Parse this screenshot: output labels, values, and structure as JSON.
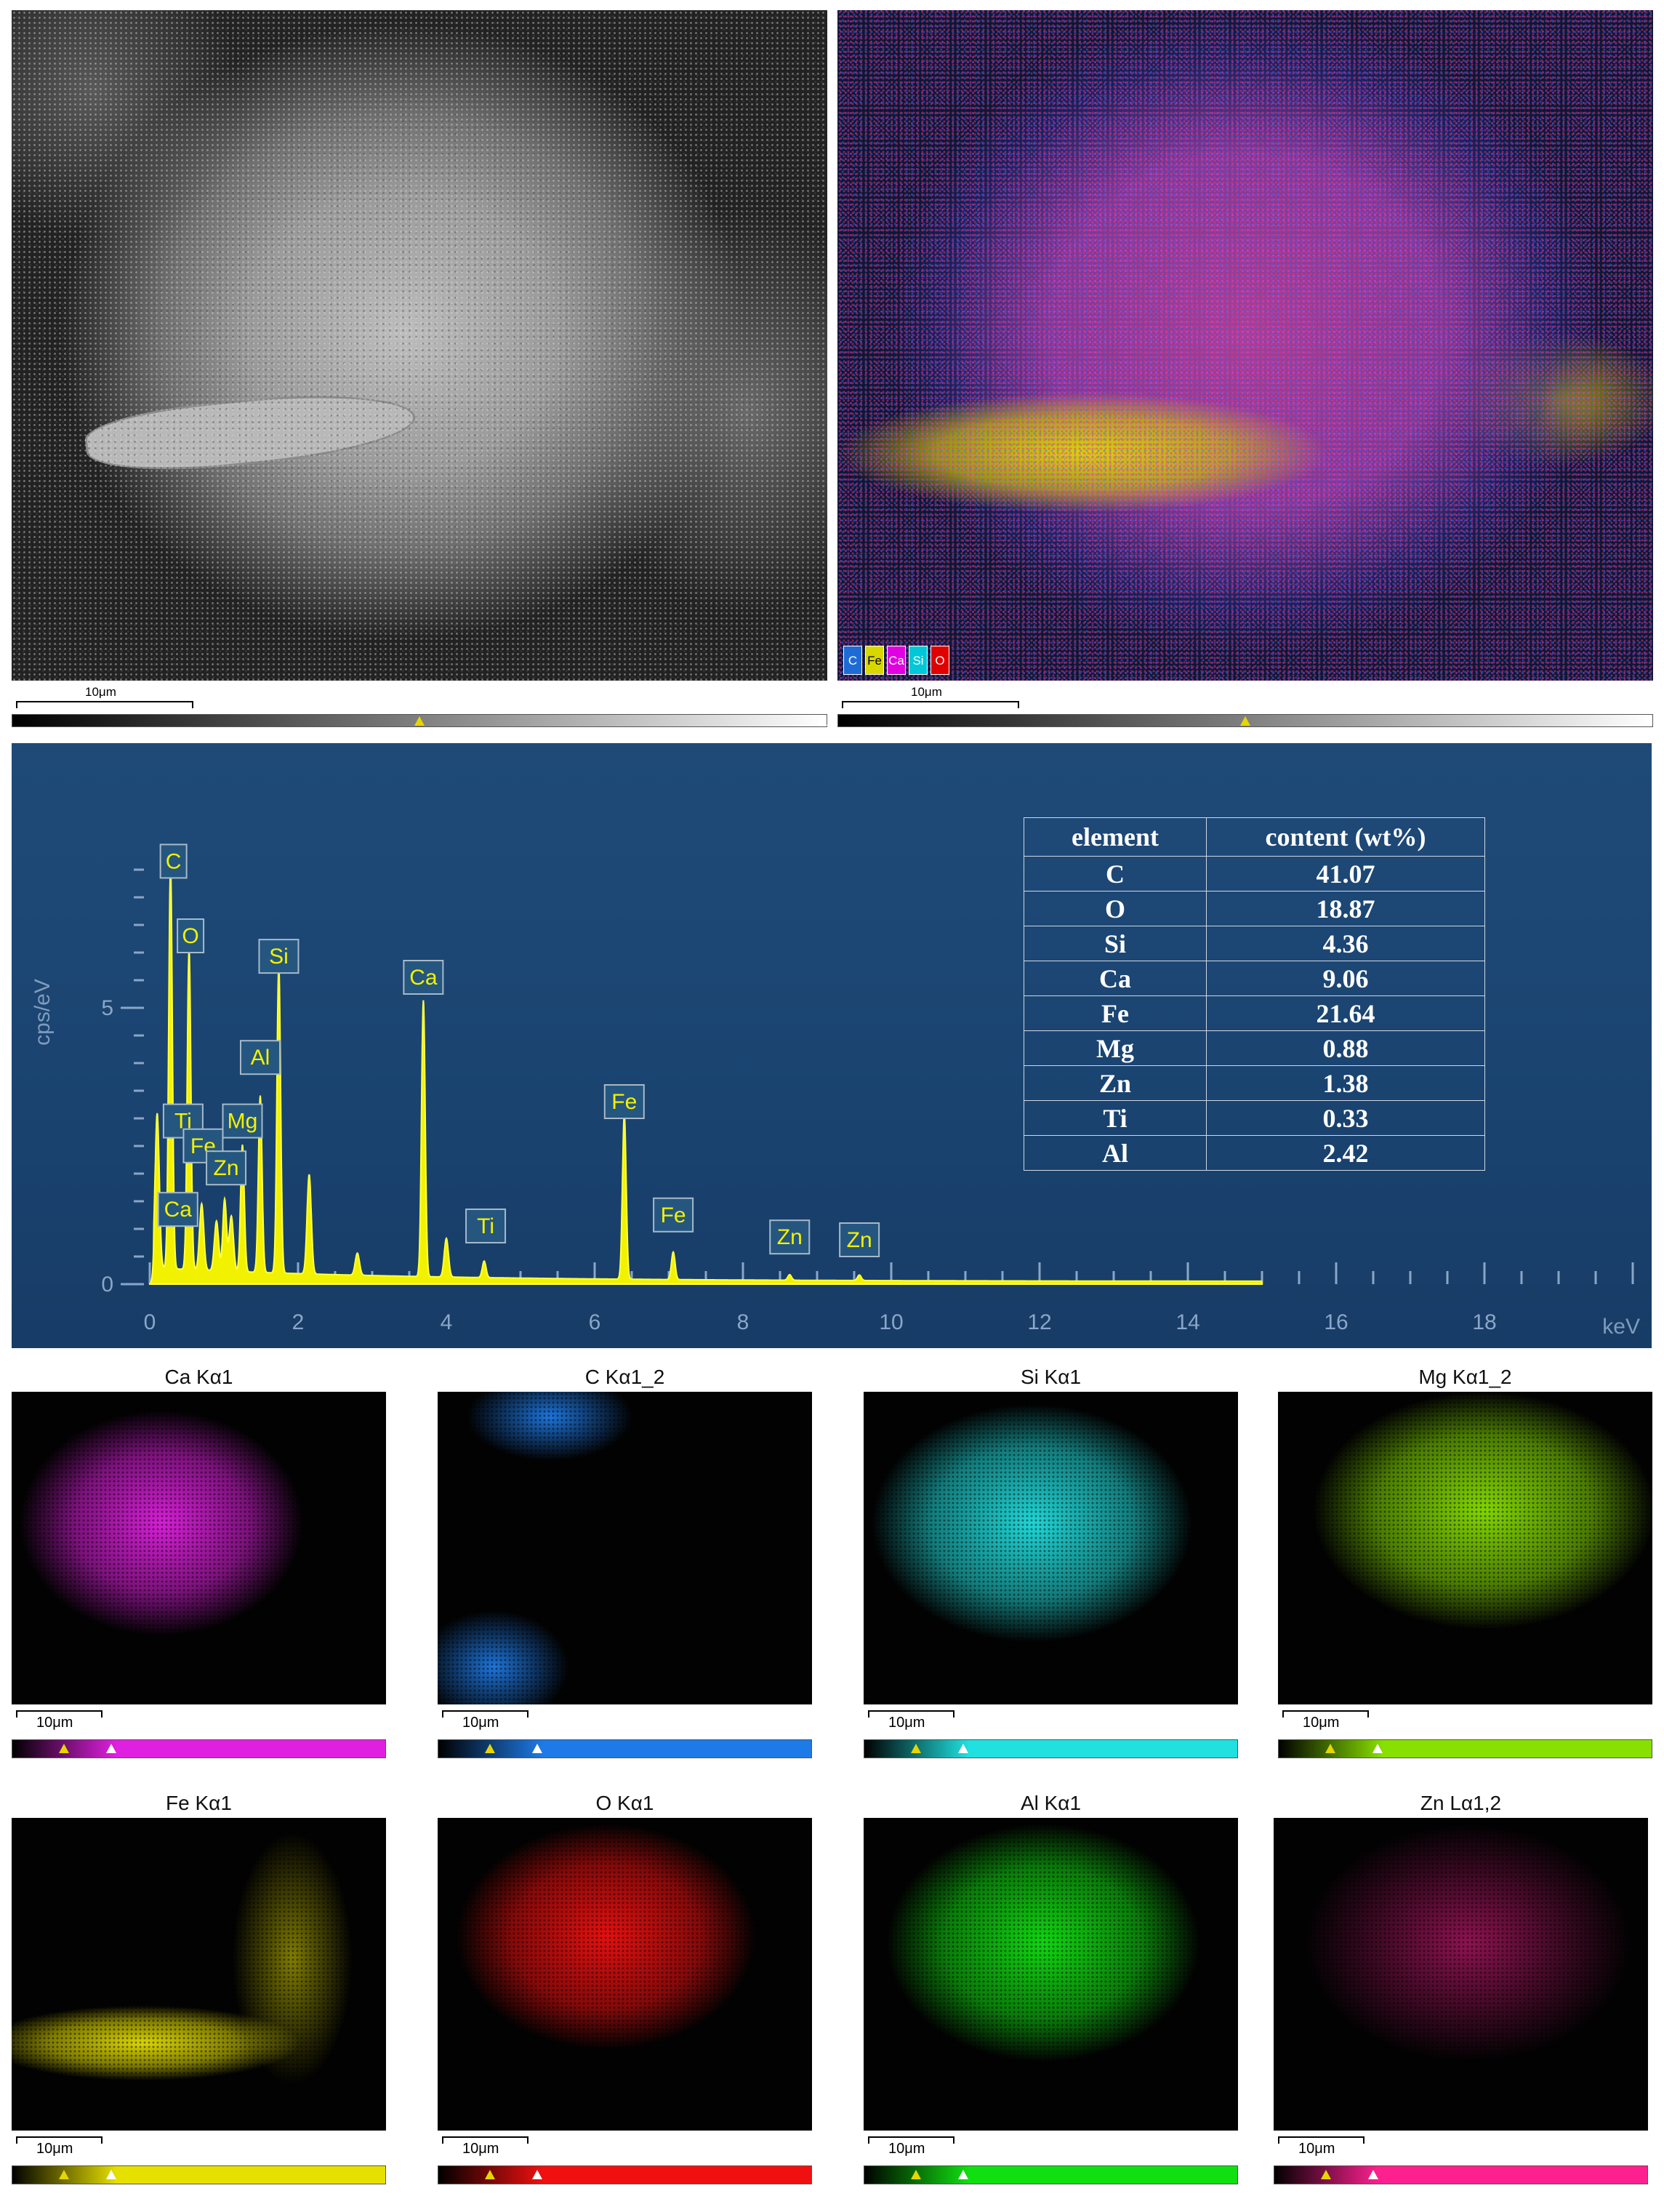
{
  "sem_image": {
    "scale_label": "10μm"
  },
  "overlay_image": {
    "scale_label": "10μm",
    "legend": [
      {
        "label": "C",
        "color": "#1e6bd6"
      },
      {
        "label": "Fe",
        "color": "#d8d800"
      },
      {
        "label": "Ca",
        "color": "#e000e0"
      },
      {
        "label": "Si",
        "color": "#00c8d8"
      },
      {
        "label": "O",
        "color": "#e00000"
      }
    ]
  },
  "spectrum": {
    "ylabel": "cps/eV",
    "xunit": "keV",
    "y_ticks": [
      "0",
      "5"
    ],
    "x_ticks": [
      "0",
      "2",
      "4",
      "6",
      "8",
      "10",
      "12",
      "14",
      "16",
      "18"
    ],
    "peak_labels": [
      "C",
      "O",
      "Si",
      "Ca",
      "Al",
      "Fe",
      "Ti",
      "Mg",
      "Fe",
      "Zn",
      "Ca",
      "Ti",
      "Fe",
      "Zn",
      "Zn"
    ]
  },
  "chart_data": {
    "type": "line",
    "xlabel": "keV",
    "ylabel": "cps/eV",
    "xlim": [
      0,
      20
    ],
    "ylim": [
      0,
      7.5
    ],
    "peaks": [
      {
        "label": "C",
        "x": 0.28,
        "y": 7.3
      },
      {
        "label": "O",
        "x": 0.53,
        "y": 5.8
      },
      {
        "label": "Si",
        "x": 1.74,
        "y": 5.6
      },
      {
        "label": "Ca",
        "x": 3.69,
        "y": 5.0
      },
      {
        "label": "Al",
        "x": 1.49,
        "y": 3.2
      },
      {
        "label": "Fe",
        "x": 6.4,
        "y": 3.0
      },
      {
        "label": "Fe",
        "x": 7.06,
        "y": 0.5
      },
      {
        "label": "Ti",
        "x": 4.51,
        "y": 0.3
      },
      {
        "label": "Mg",
        "x": 1.25,
        "y": 2.3
      },
      {
        "label": "Zn",
        "x": 1.01,
        "y": 1.3
      },
      {
        "label": "Zn",
        "x": 8.63,
        "y": 0.1
      },
      {
        "label": "Zn",
        "x": 9.57,
        "y": 0.1
      }
    ]
  },
  "table": {
    "headers": [
      "element",
      "content (wt%)"
    ],
    "rows": [
      [
        "C",
        "41.07"
      ],
      [
        "O",
        "18.87"
      ],
      [
        "Si",
        "4.36"
      ],
      [
        "Ca",
        "9.06"
      ],
      [
        "Fe",
        "21.64"
      ],
      [
        "Mg",
        "0.88"
      ],
      [
        "Zn",
        "1.38"
      ],
      [
        "Ti",
        "0.33"
      ],
      [
        "Al",
        "2.42"
      ]
    ]
  },
  "maps": [
    {
      "title": "Ca Kα1",
      "color": "#e020e0",
      "scale": "10μm"
    },
    {
      "title": "C Kα1_2",
      "color": "#1e7ae6",
      "scale": "10μm"
    },
    {
      "title": "Si Kα1",
      "color": "#20e0e0",
      "scale": "10μm"
    },
    {
      "title": "Mg Kα1_2",
      "color": "#88e000",
      "scale": "10μm"
    },
    {
      "title": "Fe Kα1",
      "color": "#e6e000",
      "scale": "10μm"
    },
    {
      "title": "O Kα1",
      "color": "#f01010",
      "scale": "10μm"
    },
    {
      "title": "Al Kα1",
      "color": "#10e010",
      "scale": "10μm"
    },
    {
      "title": "Zn Lα1,2",
      "color": "#ff2090",
      "scale": "10μm"
    }
  ]
}
